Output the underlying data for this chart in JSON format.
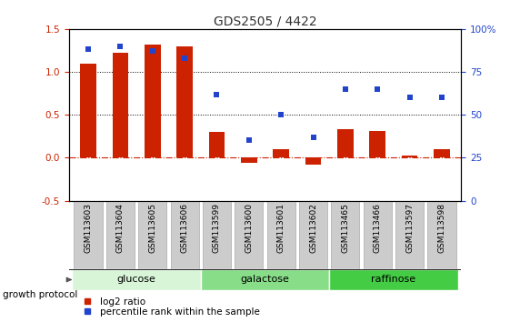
{
  "title": "GDS2505 / 4422",
  "samples": [
    "GSM113603",
    "GSM113604",
    "GSM113605",
    "GSM113606",
    "GSM113599",
    "GSM113600",
    "GSM113601",
    "GSM113602",
    "GSM113465",
    "GSM113466",
    "GSM113597",
    "GSM113598"
  ],
  "log2_ratio": [
    1.1,
    1.22,
    1.32,
    1.3,
    0.3,
    -0.06,
    0.1,
    -0.08,
    0.33,
    0.31,
    0.02,
    0.1
  ],
  "percentile_rank": [
    88,
    90,
    87,
    83,
    62,
    35,
    50,
    37,
    65,
    65,
    60,
    60
  ],
  "groups": [
    {
      "name": "glucose",
      "start": 0,
      "end": 4,
      "color": "#d8f5d8"
    },
    {
      "name": "galactose",
      "start": 4,
      "end": 8,
      "color": "#88dd88"
    },
    {
      "name": "raffinose",
      "start": 8,
      "end": 12,
      "color": "#44cc44"
    }
  ],
  "ylim_left": [
    -0.5,
    1.5
  ],
  "ylim_right": [
    0,
    100
  ],
  "yticks_left": [
    -0.5,
    0.0,
    0.5,
    1.0,
    1.5
  ],
  "yticks_right": [
    0,
    25,
    50,
    75,
    100
  ],
  "ytick_labels_right": [
    "0",
    "25",
    "50",
    "75",
    "100%"
  ],
  "bar_color": "#cc2200",
  "dot_color": "#2244cc",
  "hline_y": [
    0.5,
    1.0
  ],
  "zero_line_color": "#cc2200",
  "dotted_line_color": "#000000",
  "legend_items": [
    {
      "label": "log2 ratio",
      "color": "#cc2200",
      "marker": "s"
    },
    {
      "label": "percentile rank within the sample",
      "color": "#2244cc",
      "marker": "s"
    }
  ],
  "growth_protocol_label": "growth protocol",
  "bar_width": 0.5,
  "title_fontsize": 10,
  "xlabels_fontsize": 6.5,
  "ytick_fontsize": 7.5,
  "legend_fontsize": 7.5,
  "group_label_fontsize": 8,
  "gray_box_color": "#cccccc",
  "gray_box_edge_color": "#aaaaaa"
}
